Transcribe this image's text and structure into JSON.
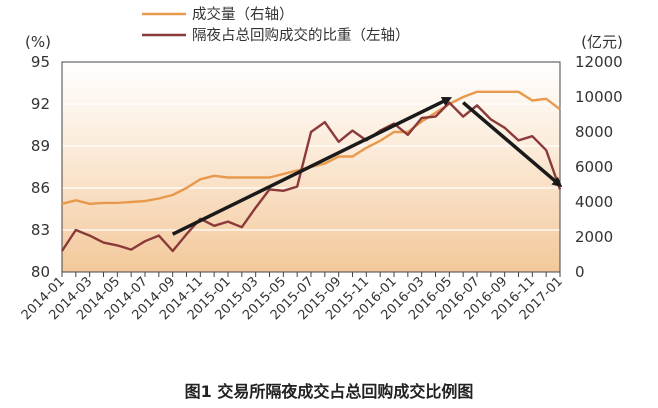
{
  "chart_data": {
    "type": "line",
    "caption": "图1  交易所隔夜成交占总回购成交比例图",
    "left_unit": "(%)",
    "right_unit": "(亿元)",
    "y_left": {
      "min": 80,
      "max": 95,
      "ticks": [
        80,
        83,
        86,
        89,
        92,
        95
      ]
    },
    "y_right": {
      "min": 0,
      "max": 12000,
      "ticks": [
        0,
        2000,
        4000,
        6000,
        8000,
        10000,
        12000
      ]
    },
    "x_tick_labels": [
      "2014-01",
      "2014-03",
      "2014-05",
      "2014-07",
      "2014-09",
      "2014-11",
      "2015-01",
      "2015-03",
      "2015-05",
      "2015-07",
      "2015-09",
      "2015-11",
      "2016-01",
      "2016-03",
      "2016-05",
      "2016-07",
      "2016-09",
      "2016-11",
      "2017-01"
    ],
    "x": [
      "2014-01",
      "2014-02",
      "2014-03",
      "2014-04",
      "2014-05",
      "2014-06",
      "2014-07",
      "2014-08",
      "2014-09",
      "2014-10",
      "2014-11",
      "2014-12",
      "2015-01",
      "2015-02",
      "2015-03",
      "2015-04",
      "2015-05",
      "2015-06",
      "2015-07",
      "2015-08",
      "2015-09",
      "2015-10",
      "2015-11",
      "2015-12",
      "2016-01",
      "2016-02",
      "2016-03",
      "2016-04",
      "2016-05",
      "2016-06",
      "2016-07",
      "2016-08",
      "2016-09",
      "2016-10",
      "2016-11",
      "2016-12",
      "2017-01"
    ],
    "series": [
      {
        "name": "成交量（右轴）",
        "axis": "right",
        "color": "#e8994c",
        "values": [
          3900,
          4100,
          3900,
          3950,
          3950,
          4000,
          4050,
          4200,
          4400,
          4800,
          5300,
          5500,
          5400,
          5400,
          5400,
          5400,
          5600,
          5800,
          6000,
          6200,
          6600,
          6600,
          7100,
          7500,
          8000,
          8000,
          8600,
          9100,
          9600,
          10000,
          10300,
          10300,
          10300,
          10300,
          9800,
          9900,
          9300
        ]
      },
      {
        "name": "隔夜占总回购成交的比重（左轴）",
        "axis": "left",
        "color": "#8b3a3a",
        "values": [
          81.5,
          83.0,
          82.6,
          82.1,
          81.9,
          81.6,
          82.2,
          82.6,
          81.5,
          82.7,
          83.8,
          83.3,
          83.6,
          83.2,
          84.6,
          85.9,
          85.8,
          86.1,
          90.0,
          90.7,
          89.3,
          90.1,
          89.4,
          90.1,
          90.6,
          89.8,
          91.0,
          91.1,
          92.1,
          91.1,
          91.9,
          90.9,
          90.3,
          89.4,
          89.7,
          88.7,
          85.9
        ]
      }
    ],
    "trend_arrows": [
      {
        "from": [
          "2014-09",
          82.7
        ],
        "to": [
          "2016-05",
          92.4
        ]
      },
      {
        "from": [
          "2016-06",
          92.1
        ],
        "to": [
          "2017-01",
          86.2
        ]
      }
    ],
    "legend_position": "top-center",
    "grid": "horizontal"
  }
}
